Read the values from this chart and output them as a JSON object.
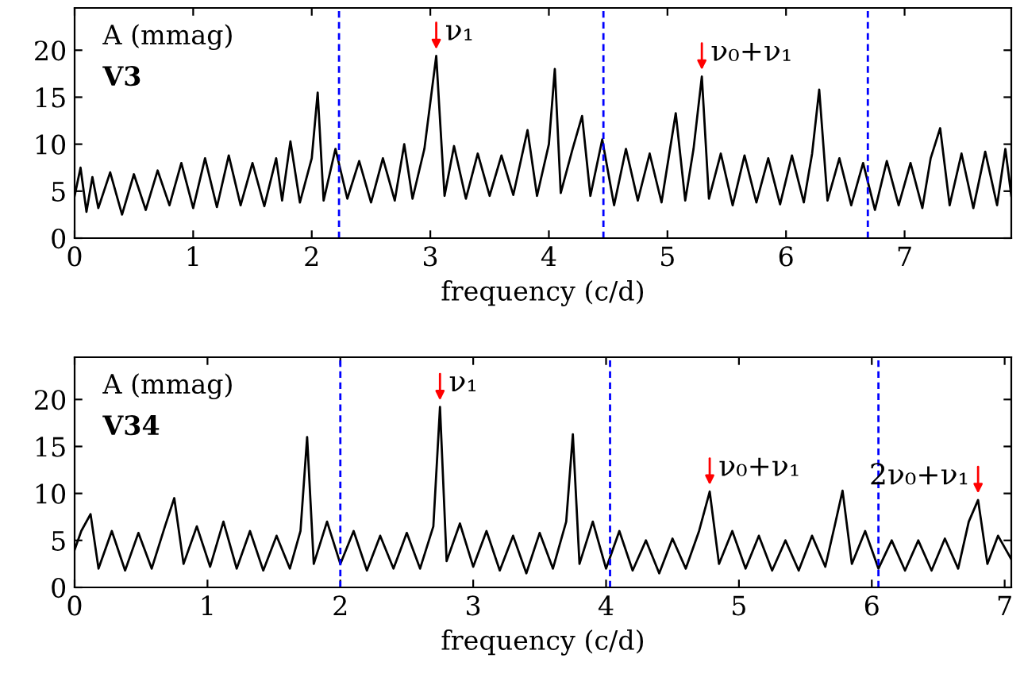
{
  "chart_data": [
    {
      "type": "line",
      "title": "V3",
      "ylabel": "A (mmag)",
      "xlabel": "frequency (c/d)",
      "xlim": [
        0,
        7.9
      ],
      "ylim": [
        0,
        24.5
      ],
      "xticks": [
        0,
        1,
        2,
        3,
        4,
        5,
        6,
        7
      ],
      "yticks": [
        0,
        5,
        10,
        15,
        20
      ],
      "grid": false,
      "legend": false,
      "series": [
        {
          "color": "#000000",
          "x": [
            0.0,
            0.05,
            0.1,
            0.15,
            0.2,
            0.3,
            0.4,
            0.5,
            0.6,
            0.7,
            0.8,
            0.9,
            1.0,
            1.1,
            1.2,
            1.3,
            1.4,
            1.5,
            1.6,
            1.7,
            1.75,
            1.82,
            1.9,
            2.0,
            2.05,
            2.1,
            2.2,
            2.3,
            2.4,
            2.5,
            2.6,
            2.7,
            2.78,
            2.85,
            2.95,
            3.05,
            3.12,
            3.2,
            3.3,
            3.4,
            3.5,
            3.6,
            3.7,
            3.82,
            3.9,
            4.0,
            4.05,
            4.1,
            4.2,
            4.28,
            4.35,
            4.45,
            4.55,
            4.65,
            4.75,
            4.85,
            4.95,
            5.07,
            5.15,
            5.22,
            5.29,
            5.35,
            5.45,
            5.55,
            5.65,
            5.75,
            5.85,
            5.95,
            6.05,
            6.15,
            6.22,
            6.28,
            6.35,
            6.45,
            6.55,
            6.65,
            6.75,
            6.85,
            6.95,
            7.05,
            7.15,
            7.22,
            7.3,
            7.38,
            7.48,
            7.58,
            7.68,
            7.78,
            7.85,
            7.9
          ],
          "values": [
            4.5,
            7.5,
            2.8,
            6.5,
            3.2,
            7.0,
            2.5,
            6.8,
            3.0,
            7.2,
            3.5,
            8.0,
            3.2,
            8.5,
            3.3,
            8.8,
            3.5,
            8.0,
            3.4,
            8.5,
            4.0,
            10.3,
            3.8,
            8.5,
            15.5,
            4.0,
            9.5,
            4.2,
            8.2,
            3.8,
            8.5,
            4.0,
            10.0,
            4.2,
            9.5,
            19.4,
            4.5,
            9.8,
            4.2,
            9.0,
            4.5,
            8.8,
            4.6,
            11.5,
            4.5,
            10.0,
            18.0,
            4.8,
            9.5,
            13.0,
            4.5,
            10.5,
            3.5,
            9.5,
            4.0,
            9.0,
            3.8,
            13.3,
            4.0,
            9.5,
            17.2,
            4.2,
            9.0,
            3.5,
            8.8,
            3.8,
            8.5,
            3.6,
            8.8,
            3.8,
            9.0,
            15.8,
            4.0,
            8.5,
            3.5,
            8.0,
            3.0,
            8.2,
            3.5,
            8.0,
            3.2,
            8.5,
            11.7,
            3.5,
            9.0,
            3.2,
            9.2,
            3.5,
            9.5,
            4.5
          ]
        }
      ],
      "ref_lines": [
        {
          "axis": "x",
          "value": 2.23,
          "color": "#0000ff",
          "line_style": "dashed"
        },
        {
          "axis": "x",
          "value": 4.46,
          "color": "#0000ff",
          "line_style": "dashed"
        },
        {
          "axis": "x",
          "value": 6.69,
          "color": "#0000ff",
          "line_style": "dashed"
        }
      ],
      "annotations": [
        {
          "text": "ν₁",
          "x": 3.05,
          "y": 19.4
        },
        {
          "text": "ν₀+ν₁",
          "x": 5.29,
          "y": 17.2
        }
      ]
    },
    {
      "type": "line",
      "title": "V34",
      "ylabel": "A (mmag)",
      "xlabel": "frequency (c/d)",
      "xlim": [
        0,
        7.05
      ],
      "ylim": [
        0,
        24.5
      ],
      "xticks": [
        0,
        1,
        2,
        3,
        4,
        5,
        6,
        7
      ],
      "yticks": [
        0,
        5,
        10,
        15,
        20
      ],
      "grid": false,
      "legend": false,
      "series": [
        {
          "color": "#000000",
          "x": [
            0.0,
            0.05,
            0.12,
            0.18,
            0.28,
            0.38,
            0.48,
            0.58,
            0.68,
            0.75,
            0.82,
            0.92,
            1.02,
            1.12,
            1.22,
            1.32,
            1.42,
            1.52,
            1.62,
            1.7,
            1.75,
            1.8,
            1.9,
            2.0,
            2.1,
            2.2,
            2.3,
            2.4,
            2.5,
            2.6,
            2.7,
            2.75,
            2.8,
            2.9,
            3.0,
            3.1,
            3.2,
            3.3,
            3.4,
            3.5,
            3.6,
            3.7,
            3.75,
            3.8,
            3.9,
            4.0,
            4.1,
            4.2,
            4.3,
            4.4,
            4.5,
            4.6,
            4.7,
            4.78,
            4.85,
            4.95,
            5.05,
            5.15,
            5.25,
            5.35,
            5.45,
            5.55,
            5.65,
            5.72,
            5.78,
            5.85,
            5.95,
            6.05,
            6.15,
            6.25,
            6.35,
            6.45,
            6.55,
            6.65,
            6.73,
            6.8,
            6.87,
            6.95,
            7.05
          ],
          "values": [
            4.0,
            6.0,
            7.8,
            2.0,
            6.0,
            1.8,
            5.8,
            2.0,
            6.5,
            9.5,
            2.5,
            6.5,
            2.2,
            7.0,
            2.0,
            6.0,
            1.8,
            5.5,
            2.0,
            6.0,
            16.0,
            2.5,
            7.0,
            2.5,
            6.0,
            1.8,
            5.5,
            2.0,
            5.8,
            2.0,
            6.5,
            19.2,
            2.8,
            6.8,
            2.2,
            6.0,
            1.8,
            5.5,
            1.5,
            5.8,
            2.0,
            7.0,
            16.3,
            2.5,
            7.0,
            2.0,
            6.0,
            1.8,
            5.0,
            1.5,
            5.2,
            2.0,
            6.0,
            10.2,
            2.5,
            6.0,
            2.0,
            5.5,
            1.8,
            5.0,
            1.8,
            5.5,
            2.2,
            6.5,
            10.3,
            2.5,
            6.0,
            2.0,
            5.0,
            1.8,
            5.0,
            1.8,
            5.2,
            2.0,
            7.0,
            9.3,
            2.5,
            5.5,
            3.0
          ]
        }
      ],
      "ref_lines": [
        {
          "axis": "x",
          "value": 2.0,
          "color": "#0000ff",
          "line_style": "dashed"
        },
        {
          "axis": "x",
          "value": 4.03,
          "color": "#0000ff",
          "line_style": "dashed"
        },
        {
          "axis": "x",
          "value": 6.05,
          "color": "#0000ff",
          "line_style": "dashed"
        }
      ],
      "annotations": [
        {
          "text": "ν₁",
          "x": 2.75,
          "y": 19.2
        },
        {
          "text": "ν₀+ν₁",
          "x": 4.78,
          "y": 10.2
        },
        {
          "text": "2ν₀+ν₁",
          "x": 6.8,
          "y": 9.3
        }
      ]
    }
  ]
}
